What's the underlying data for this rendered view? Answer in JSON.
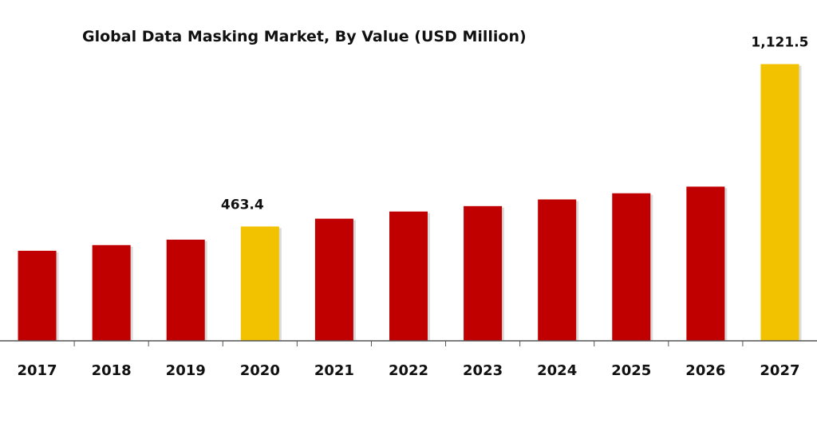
{
  "chart_data": {
    "type": "bar",
    "title": "Global Data Masking Market, By Value (USD Million)",
    "xlabel": "",
    "ylabel": "",
    "categories": [
      "2017",
      "2018",
      "2019",
      "2020",
      "2021",
      "2022",
      "2023",
      "2024",
      "2025",
      "2026",
      "2027"
    ],
    "values": [
      365,
      388,
      410,
      463.4,
      495,
      524,
      546,
      573,
      598,
      625,
      1121.5
    ],
    "ylim": [
      0,
      1220
    ],
    "grid": false,
    "legend": "none",
    "data_labels": [
      {
        "category": "2020",
        "text": "463.4"
      },
      {
        "category": "2027",
        "text": "1,121.5"
      }
    ],
    "colors": {
      "default_bar": "#c00000",
      "highlight_bar": "#f2c100",
      "axis": "#555555"
    },
    "highlight_categories": [
      "2020",
      "2027"
    ]
  }
}
